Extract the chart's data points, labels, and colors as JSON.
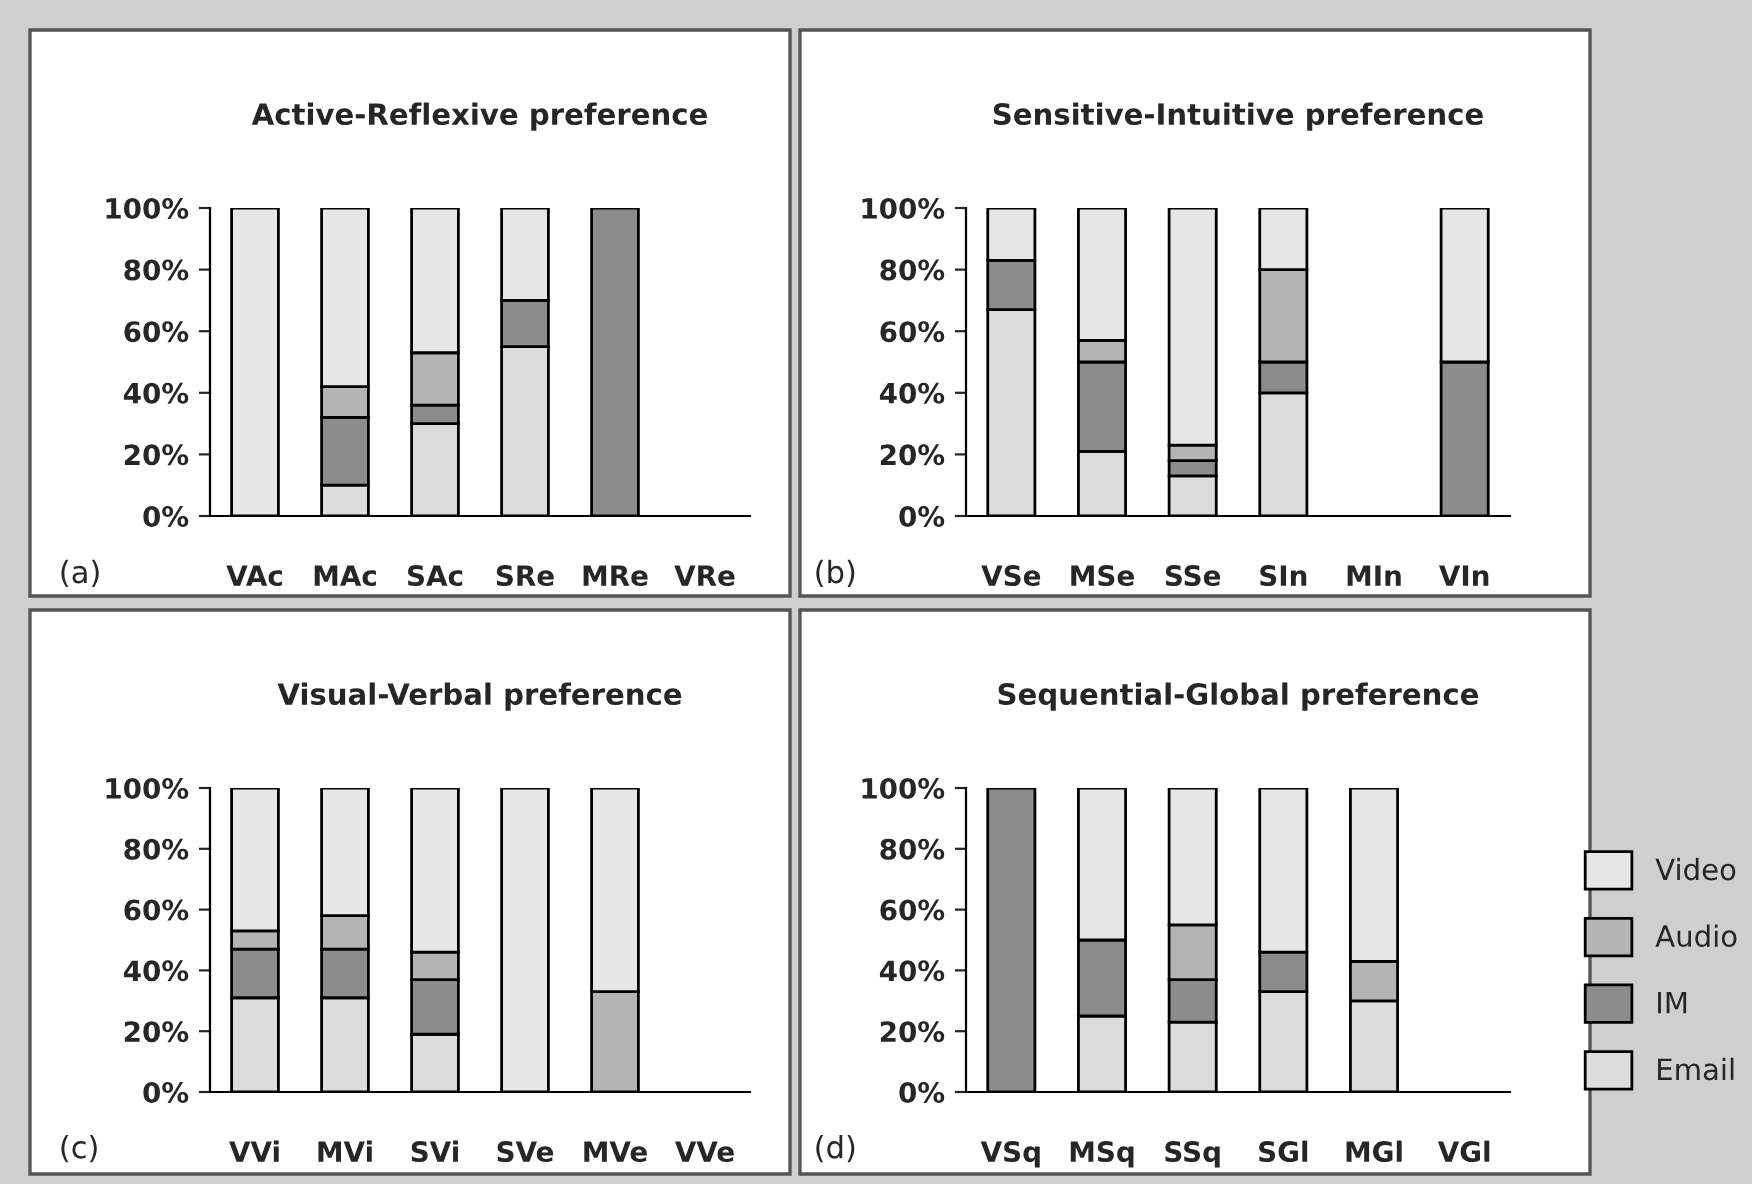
{
  "chart_data": [
    {
      "type": "bar",
      "stacked": true,
      "title": "Active-Reflexive preference",
      "annotations": [
        "(a)"
      ],
      "categories": [
        "VAc",
        "MAc",
        "SAc",
        "SRe",
        "MRe",
        "VRe"
      ],
      "ylim": [
        0,
        100
      ],
      "yticks": [
        {
          "value": 0,
          "label": "0%"
        },
        {
          "value": 20,
          "label": "20%"
        },
        {
          "value": 40,
          "label": "40%"
        },
        {
          "value": 60,
          "label": "60%"
        },
        {
          "value": 80,
          "label": "80%"
        },
        {
          "value": 100,
          "label": "100%"
        }
      ],
      "grid": false,
      "legend": false,
      "series": [
        {
          "color": "#dcdcdc",
          "values": [
            0,
            10,
            30,
            55,
            0,
            0
          ]
        },
        {
          "color": "#8c8c8c",
          "values": [
            0,
            22,
            6,
            15,
            100,
            0
          ]
        },
        {
          "color": "#b4b4b4",
          "values": [
            0,
            10,
            17,
            0,
            0,
            0
          ]
        },
        {
          "color": "#e6e6e6",
          "values": [
            100,
            58,
            47,
            30,
            0,
            0
          ]
        }
      ]
    },
    {
      "type": "bar",
      "stacked": true,
      "title": "Sensitive-Intuitive preference",
      "annotations": [
        "(b)"
      ],
      "categories": [
        "VSe",
        "MSe",
        "SSe",
        "SIn",
        "MIn",
        "VIn"
      ],
      "ylim": [
        0,
        100
      ],
      "yticks": [
        {
          "value": 0,
          "label": "0%"
        },
        {
          "value": 20,
          "label": "20%"
        },
        {
          "value": 40,
          "label": "40%"
        },
        {
          "value": 60,
          "label": "60%"
        },
        {
          "value": 80,
          "label": "80%"
        },
        {
          "value": 100,
          "label": "100%"
        }
      ],
      "grid": false,
      "legend": false,
      "series": [
        {
          "color": "#dcdcdc",
          "values": [
            67,
            21,
            13,
            40,
            0,
            0
          ]
        },
        {
          "color": "#8c8c8c",
          "values": [
            16,
            29,
            5,
            10,
            0,
            50
          ]
        },
        {
          "color": "#b4b4b4",
          "values": [
            0,
            7,
            5,
            30,
            0,
            0
          ]
        },
        {
          "color": "#e6e6e6",
          "values": [
            17,
            43,
            77,
            20,
            0,
            50
          ]
        }
      ]
    },
    {
      "type": "bar",
      "stacked": true,
      "title": "Visual-Verbal preference",
      "annotations": [
        "(c)"
      ],
      "categories": [
        "VVi",
        "MVi",
        "SVi",
        "SVe",
        "MVe",
        "VVe"
      ],
      "ylim": [
        0,
        100
      ],
      "yticks": [
        {
          "value": 0,
          "label": "0%"
        },
        {
          "value": 20,
          "label": "20%"
        },
        {
          "value": 40,
          "label": "40%"
        },
        {
          "value": 60,
          "label": "60%"
        },
        {
          "value": 80,
          "label": "80%"
        },
        {
          "value": 100,
          "label": "100%"
        }
      ],
      "grid": false,
      "legend": false,
      "series": [
        {
          "color": "#dcdcdc",
          "values": [
            31,
            31,
            19,
            0,
            0,
            0
          ]
        },
        {
          "color": "#8c8c8c",
          "values": [
            16,
            16,
            18,
            0,
            0,
            0
          ]
        },
        {
          "color": "#b4b4b4",
          "values": [
            6,
            11,
            9,
            0,
            33,
            0
          ]
        },
        {
          "color": "#e6e6e6",
          "values": [
            47,
            42,
            54,
            100,
            67,
            0
          ]
        }
      ]
    },
    {
      "type": "bar",
      "stacked": true,
      "title": "Sequential-Global preference",
      "annotations": [
        "(d)"
      ],
      "categories": [
        "VSq",
        "MSq",
        "SSq",
        "SGl",
        "MGl",
        "VGl"
      ],
      "ylim": [
        0,
        100
      ],
      "yticks": [
        {
          "value": 0,
          "label": "0%"
        },
        {
          "value": 20,
          "label": "20%"
        },
        {
          "value": 40,
          "label": "40%"
        },
        {
          "value": 60,
          "label": "60%"
        },
        {
          "value": 80,
          "label": "80%"
        },
        {
          "value": 100,
          "label": "100%"
        }
      ],
      "grid": false,
      "legend": "right",
      "series": [
        {
          "name": "Email",
          "color": "#dcdcdc",
          "values": [
            0,
            25,
            23,
            33,
            30,
            0
          ]
        },
        {
          "name": "IM",
          "color": "#8c8c8c",
          "values": [
            100,
            25,
            14,
            13,
            0,
            0
          ]
        },
        {
          "name": "Audio",
          "color": "#b4b4b4",
          "values": [
            0,
            0,
            18,
            0,
            13,
            0
          ]
        },
        {
          "name": "Video",
          "color": "#e6e6e6",
          "values": [
            0,
            50,
            45,
            54,
            57,
            0
          ]
        }
      ]
    }
  ]
}
